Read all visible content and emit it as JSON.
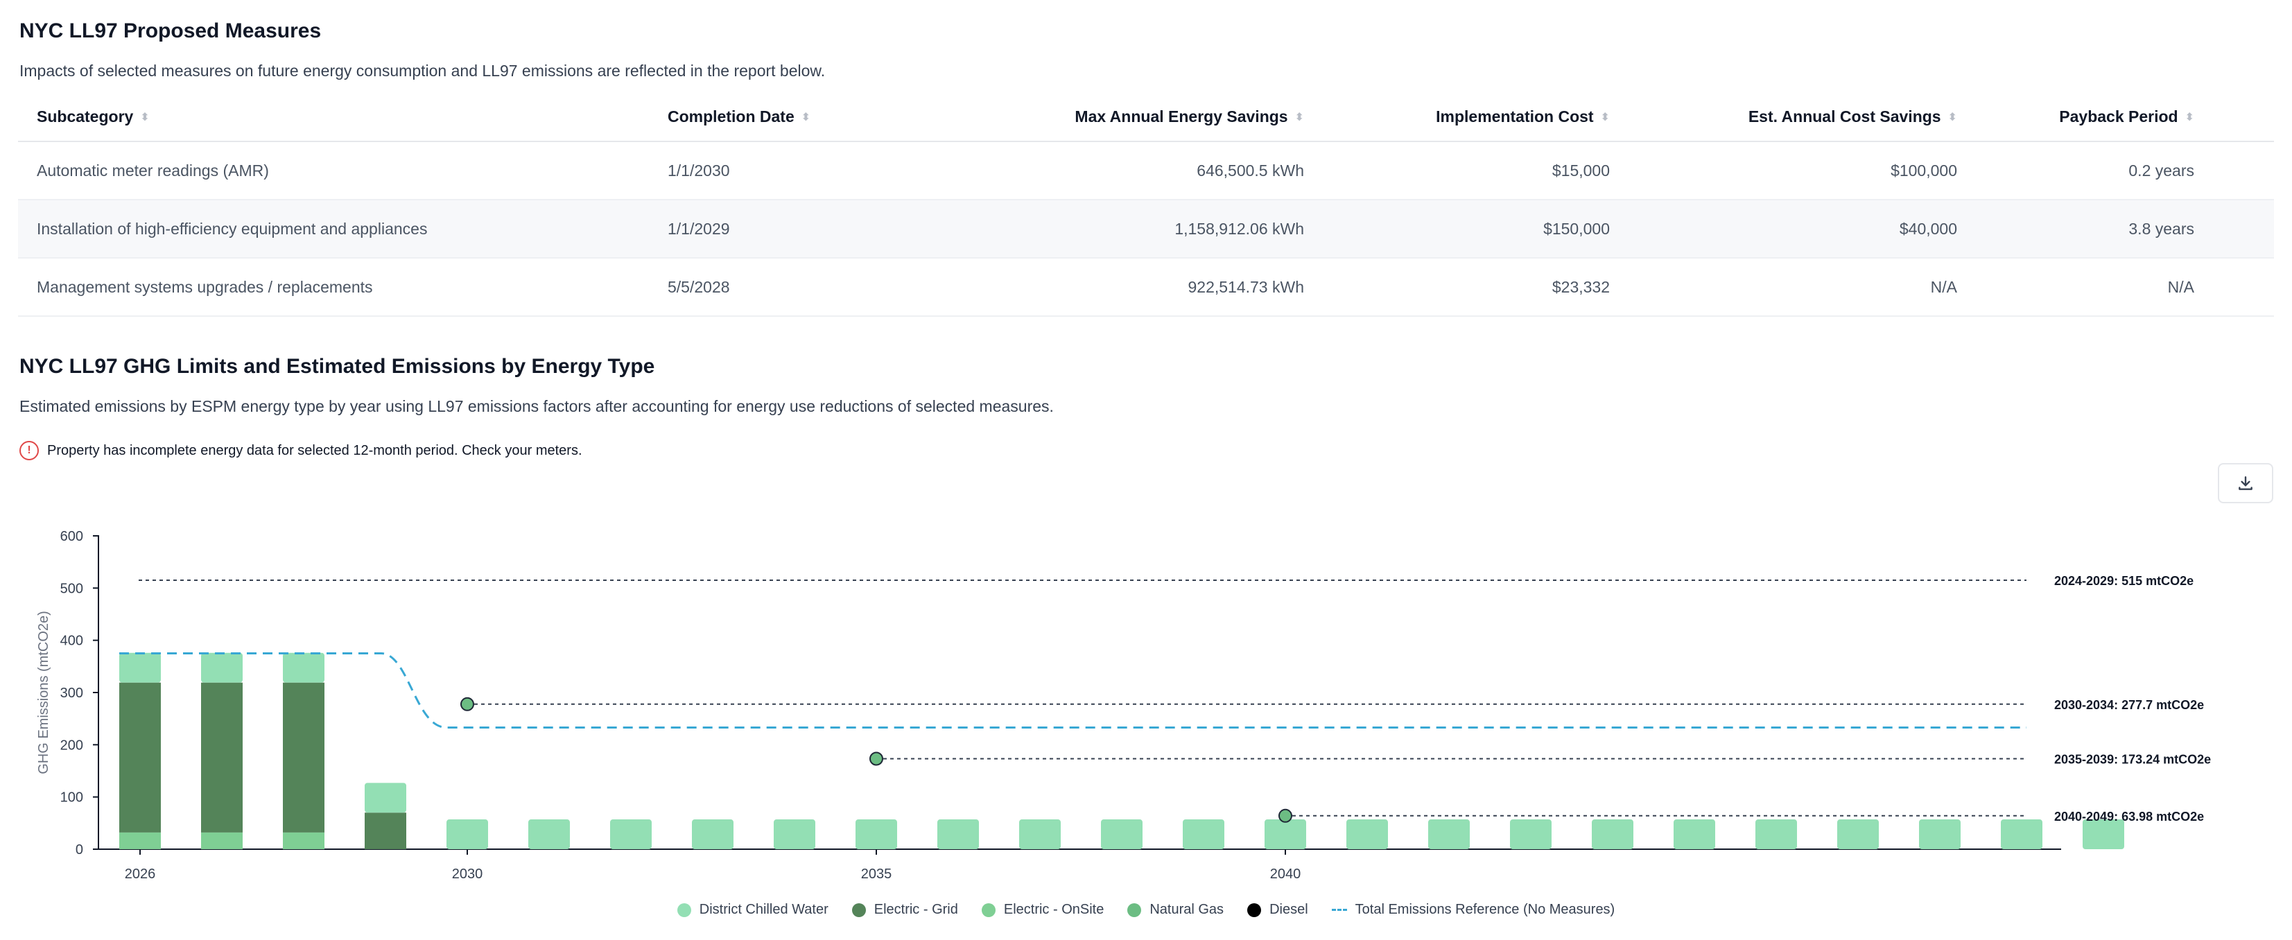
{
  "proposed": {
    "title": "NYC LL97 Proposed Measures",
    "description": "Impacts of selected measures on future energy consumption and LL97 emissions are reflected in the report below.",
    "columns": [
      "Subcategory",
      "Completion Date",
      "Max Annual Energy Savings",
      "Implementation Cost",
      "Est. Annual Cost Savings",
      "Payback Period"
    ],
    "rows": [
      [
        "Automatic meter readings (AMR)",
        "1/1/2030",
        "646,500.5 kWh",
        "$15,000",
        "$100,000",
        "0.2 years"
      ],
      [
        "Installation of high-efficiency equipment and appliances",
        "1/1/2029",
        "1,158,912.06 kWh",
        "$150,000",
        "$40,000",
        "3.8 years"
      ],
      [
        "Management systems upgrades / replacements",
        "5/5/2028",
        "922,514.73 kWh",
        "$23,332",
        "N/A",
        "N/A"
      ]
    ]
  },
  "emissions": {
    "title": "NYC LL97 GHG Limits and Estimated Emissions by Energy Type",
    "description": "Estimated emissions by ESPM energy type by year using LL97 emissions factors after accounting for energy use reductions of selected measures.",
    "warning": "Property has incomplete energy data for selected 12-month period. Check your meters.",
    "icons": {
      "warning": "alert-circle-icon",
      "download": "download-icon"
    }
  },
  "chart_data": {
    "type": "bar",
    "ylabel": "GHG Emissions (mtCO2e)",
    "xlabel": "",
    "ylim": [
      0,
      600
    ],
    "yticks": [
      0,
      100,
      200,
      300,
      400,
      500,
      600
    ],
    "xticks": [
      2026,
      2030,
      2035,
      2040
    ],
    "years": [
      2026,
      2027,
      2028,
      2029,
      2030,
      2031,
      2032,
      2033,
      2034,
      2035,
      2036,
      2037,
      2038,
      2039,
      2040,
      2041,
      2042,
      2043,
      2044,
      2045,
      2046,
      2047,
      2048,
      2049,
      2050
    ],
    "stacked": true,
    "series": [
      {
        "name": "District Chilled Water",
        "color": "#93dfb4",
        "values": [
          57,
          57,
          57,
          57,
          57,
          57,
          57,
          57,
          57,
          57,
          57,
          57,
          57,
          57,
          57,
          57,
          57,
          57,
          57,
          57,
          57,
          57,
          57,
          57,
          57
        ]
      },
      {
        "name": "Electric - Grid",
        "color": "#548459",
        "values": [
          287,
          287,
          287,
          70,
          0,
          0,
          0,
          0,
          0,
          0,
          0,
          0,
          0,
          0,
          0,
          0,
          0,
          0,
          0,
          0,
          0,
          0,
          0,
          0,
          0
        ]
      },
      {
        "name": "Electric - OnSite",
        "color": "#7fcf94",
        "values": [
          32,
          32,
          32,
          0,
          0,
          0,
          0,
          0,
          0,
          0,
          0,
          0,
          0,
          0,
          0,
          0,
          0,
          0,
          0,
          0,
          0,
          0,
          0,
          0,
          0
        ]
      },
      {
        "name": "Natural Gas",
        "color": "#6cbd83",
        "values": [
          0,
          0,
          0,
          0,
          0,
          0,
          0,
          0,
          0,
          0,
          0,
          0,
          0,
          0,
          0,
          0,
          0,
          0,
          0,
          0,
          0,
          0,
          0,
          0,
          0
        ]
      },
      {
        "name": "Diesel",
        "color": "#000000",
        "values": [
          0,
          0,
          0,
          0,
          0,
          0,
          0,
          0,
          0,
          0,
          0,
          0,
          0,
          0,
          0,
          0,
          0,
          0,
          0,
          0,
          0,
          0,
          0,
          0,
          0
        ]
      }
    ],
    "reference_line": {
      "name": "Total Emissions Reference (No Measures)",
      "color": "#39a8d4",
      "points": [
        [
          2026,
          375
        ],
        [
          2029.2,
          375
        ],
        [
          2030,
          233
        ],
        [
          2050,
          233
        ]
      ]
    },
    "limits": [
      {
        "label": "2024-2029: 515 mtCO2e",
        "value": 515,
        "start": 2026,
        "marker": false
      },
      {
        "label": "2030-2034: 277.7 mtCO2e",
        "value": 277.7,
        "start": 2030,
        "marker": true
      },
      {
        "label": "2035-2039: 173.24 mtCO2e",
        "value": 173.24,
        "start": 2035,
        "marker": true
      },
      {
        "label": "2040-2049: 63.98 mtCO2e",
        "value": 63.98,
        "start": 2040,
        "marker": true
      }
    ],
    "legend_position": "bottom"
  }
}
